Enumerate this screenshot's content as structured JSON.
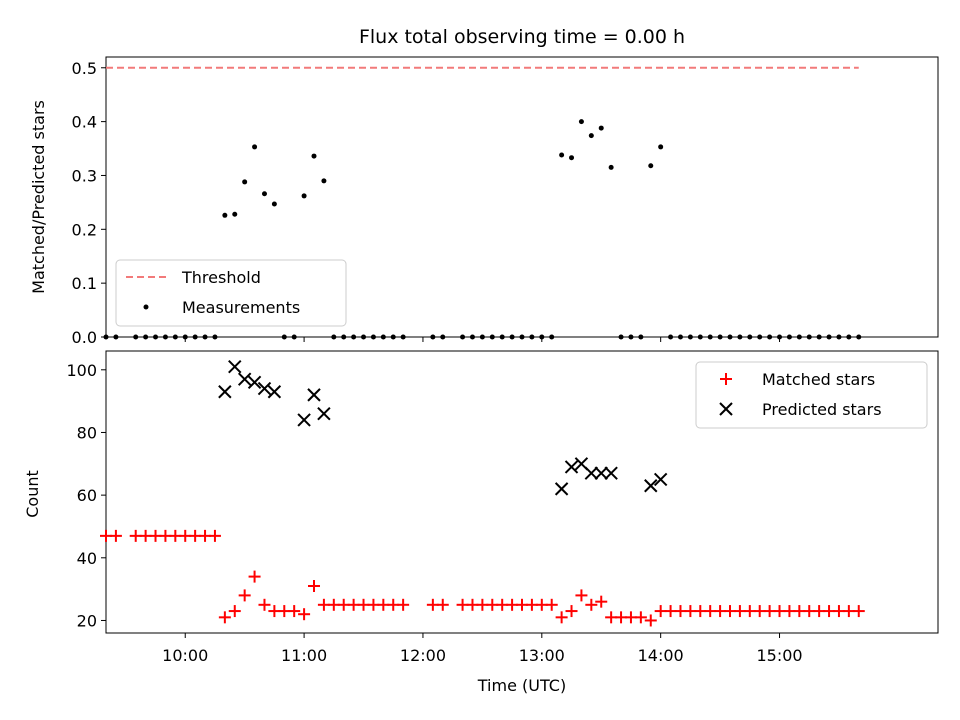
{
  "chart_data": [
    {
      "type": "scatter",
      "title": "Flux total observing time = 0.00 h",
      "xlabel": "",
      "ylabel": "Matched/Predicted stars",
      "xlim": [
        "09:20",
        "16:20"
      ],
      "ylim": [
        0,
        0.52
      ],
      "yticks": [
        0.0,
        0.1,
        0.2,
        0.3,
        0.4,
        0.5
      ],
      "grid": false,
      "legend_placement": "lower-left",
      "threshold": {
        "name": "Threshold",
        "value": 0.5,
        "x_range": [
          "09:20",
          "15:40"
        ],
        "color": "#f27a7a",
        "style": "dashed"
      },
      "series": [
        {
          "name": "Measurements",
          "color": "#000000",
          "marker": "dot",
          "points": [
            [
              "09:20",
              0
            ],
            [
              "09:25",
              0
            ],
            [
              "09:35",
              0
            ],
            [
              "09:40",
              0
            ],
            [
              "09:45",
              0
            ],
            [
              "09:50",
              0
            ],
            [
              "09:55",
              0
            ],
            [
              "10:00",
              0
            ],
            [
              "10:05",
              0
            ],
            [
              "10:10",
              0
            ],
            [
              "10:15",
              0
            ],
            [
              "10:20",
              0.226
            ],
            [
              "10:25",
              0.228
            ],
            [
              "10:30",
              0.288
            ],
            [
              "10:35",
              0.353
            ],
            [
              "10:40",
              0.266
            ],
            [
              "10:45",
              0.247
            ],
            [
              "10:50",
              0
            ],
            [
              "10:55",
              0
            ],
            [
              "11:00",
              0.262
            ],
            [
              "11:05",
              0.336
            ],
            [
              "11:10",
              0.29
            ],
            [
              "11:15",
              0
            ],
            [
              "11:20",
              0
            ],
            [
              "11:25",
              0
            ],
            [
              "11:30",
              0
            ],
            [
              "11:35",
              0
            ],
            [
              "11:40",
              0
            ],
            [
              "11:45",
              0
            ],
            [
              "11:50",
              0
            ],
            [
              "12:05",
              0
            ],
            [
              "12:10",
              0
            ],
            [
              "12:20",
              0
            ],
            [
              "12:25",
              0
            ],
            [
              "12:30",
              0
            ],
            [
              "12:35",
              0
            ],
            [
              "12:40",
              0
            ],
            [
              "12:45",
              0
            ],
            [
              "12:50",
              0
            ],
            [
              "12:55",
              0
            ],
            [
              "13:00",
              0
            ],
            [
              "13:05",
              0
            ],
            [
              "13:10",
              0.338
            ],
            [
              "13:15",
              0.333
            ],
            [
              "13:20",
              0.4
            ],
            [
              "13:25",
              0.374
            ],
            [
              "13:30",
              0.388
            ],
            [
              "13:35",
              0.315
            ],
            [
              "13:40",
              0
            ],
            [
              "13:45",
              0
            ],
            [
              "13:50",
              0
            ],
            [
              "13:55",
              0.318
            ],
            [
              "14:00",
              0.353
            ],
            [
              "14:05",
              0
            ],
            [
              "14:10",
              0
            ],
            [
              "14:15",
              0
            ],
            [
              "14:20",
              0
            ],
            [
              "14:25",
              0
            ],
            [
              "14:30",
              0
            ],
            [
              "14:35",
              0
            ],
            [
              "14:40",
              0
            ],
            [
              "14:45",
              0
            ],
            [
              "14:50",
              0
            ],
            [
              "14:55",
              0
            ],
            [
              "15:00",
              0
            ],
            [
              "15:05",
              0
            ],
            [
              "15:10",
              0
            ],
            [
              "15:15",
              0
            ],
            [
              "15:20",
              0
            ],
            [
              "15:25",
              0
            ],
            [
              "15:30",
              0
            ],
            [
              "15:35",
              0
            ],
            [
              "15:40",
              0
            ]
          ]
        }
      ]
    },
    {
      "type": "scatter",
      "title": "",
      "xlabel": "Time (UTC)",
      "ylabel": "Count",
      "xlim": [
        "09:20",
        "16:20"
      ],
      "ylim": [
        16,
        106
      ],
      "yticks": [
        20,
        40,
        60,
        80,
        100
      ],
      "xticks": [
        "10:00",
        "11:00",
        "12:00",
        "13:00",
        "14:00",
        "15:00"
      ],
      "grid": false,
      "legend_placement": "upper-right",
      "series": [
        {
          "name": "Matched stars",
          "color": "#ff0000",
          "marker": "plus",
          "points": [
            [
              "09:20",
              47
            ],
            [
              "09:25",
              47
            ],
            [
              "09:35",
              47
            ],
            [
              "09:40",
              47
            ],
            [
              "09:45",
              47
            ],
            [
              "09:50",
              47
            ],
            [
              "09:55",
              47
            ],
            [
              "10:00",
              47
            ],
            [
              "10:05",
              47
            ],
            [
              "10:10",
              47
            ],
            [
              "10:15",
              47
            ],
            [
              "10:20",
              21
            ],
            [
              "10:25",
              23
            ],
            [
              "10:30",
              28
            ],
            [
              "10:35",
              34
            ],
            [
              "10:40",
              25
            ],
            [
              "10:45",
              23
            ],
            [
              "10:50",
              23
            ],
            [
              "10:55",
              23
            ],
            [
              "11:00",
              22
            ],
            [
              "11:05",
              31
            ],
            [
              "11:10",
              25
            ],
            [
              "11:15",
              25
            ],
            [
              "11:20",
              25
            ],
            [
              "11:25",
              25
            ],
            [
              "11:30",
              25
            ],
            [
              "11:35",
              25
            ],
            [
              "11:40",
              25
            ],
            [
              "11:45",
              25
            ],
            [
              "11:50",
              25
            ],
            [
              "12:05",
              25
            ],
            [
              "12:10",
              25
            ],
            [
              "12:20",
              25
            ],
            [
              "12:25",
              25
            ],
            [
              "12:30",
              25
            ],
            [
              "12:35",
              25
            ],
            [
              "12:40",
              25
            ],
            [
              "12:45",
              25
            ],
            [
              "12:50",
              25
            ],
            [
              "12:55",
              25
            ],
            [
              "13:00",
              25
            ],
            [
              "13:05",
              25
            ],
            [
              "13:10",
              21
            ],
            [
              "13:15",
              23
            ],
            [
              "13:20",
              28
            ],
            [
              "13:25",
              25
            ],
            [
              "13:30",
              26
            ],
            [
              "13:35",
              21
            ],
            [
              "13:40",
              21
            ],
            [
              "13:45",
              21
            ],
            [
              "13:50",
              21
            ],
            [
              "13:55",
              20
            ],
            [
              "14:00",
              23
            ],
            [
              "14:05",
              23
            ],
            [
              "14:10",
              23
            ],
            [
              "14:15",
              23
            ],
            [
              "14:20",
              23
            ],
            [
              "14:25",
              23
            ],
            [
              "14:30",
              23
            ],
            [
              "14:35",
              23
            ],
            [
              "14:40",
              23
            ],
            [
              "14:45",
              23
            ],
            [
              "14:50",
              23
            ],
            [
              "14:55",
              23
            ],
            [
              "15:00",
              23
            ],
            [
              "15:05",
              23
            ],
            [
              "15:10",
              23
            ],
            [
              "15:15",
              23
            ],
            [
              "15:20",
              23
            ],
            [
              "15:25",
              23
            ],
            [
              "15:30",
              23
            ],
            [
              "15:35",
              23
            ],
            [
              "15:40",
              23
            ]
          ]
        },
        {
          "name": "Predicted stars",
          "color": "#000000",
          "marker": "x",
          "points": [
            [
              "10:20",
              93
            ],
            [
              "10:25",
              101
            ],
            [
              "10:30",
              97
            ],
            [
              "10:35",
              96
            ],
            [
              "10:40",
              94
            ],
            [
              "10:45",
              93
            ],
            [
              "11:00",
              84
            ],
            [
              "11:05",
              92
            ],
            [
              "11:10",
              86
            ],
            [
              "13:10",
              62
            ],
            [
              "13:15",
              69
            ],
            [
              "13:20",
              70
            ],
            [
              "13:25",
              67
            ],
            [
              "13:30",
              67
            ],
            [
              "13:35",
              67
            ],
            [
              "13:55",
              63
            ],
            [
              "14:00",
              65
            ]
          ]
        }
      ]
    }
  ]
}
